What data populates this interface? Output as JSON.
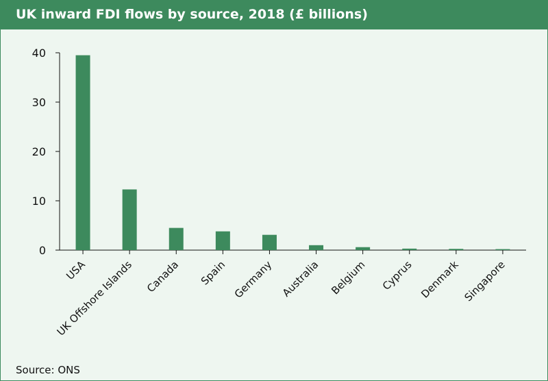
{
  "chart_data": {
    "type": "bar",
    "title": "UK inward FDI flows by source, 2018 (£ billions)",
    "categories": [
      "USA",
      "UK Offshore Islands",
      "Canada",
      "Spain",
      "Germany",
      "Australia",
      "Belgium",
      "Cyprus",
      "Denmark",
      "Singapore"
    ],
    "values": [
      39.5,
      12.3,
      4.5,
      3.8,
      3.1,
      1.0,
      0.6,
      0.3,
      0.25,
      0.2
    ],
    "yticks": [
      "0",
      "10",
      "20",
      "30",
      "40"
    ],
    "ylim": [
      0,
      40
    ],
    "xlabel": "",
    "ylabel": "",
    "grid": false,
    "bar_color": "#3d8a5d"
  },
  "footer": {
    "source": "Source: ONS"
  },
  "colors": {
    "header_bg": "#3d8a5d",
    "panel_bg": "#eef6f0"
  }
}
